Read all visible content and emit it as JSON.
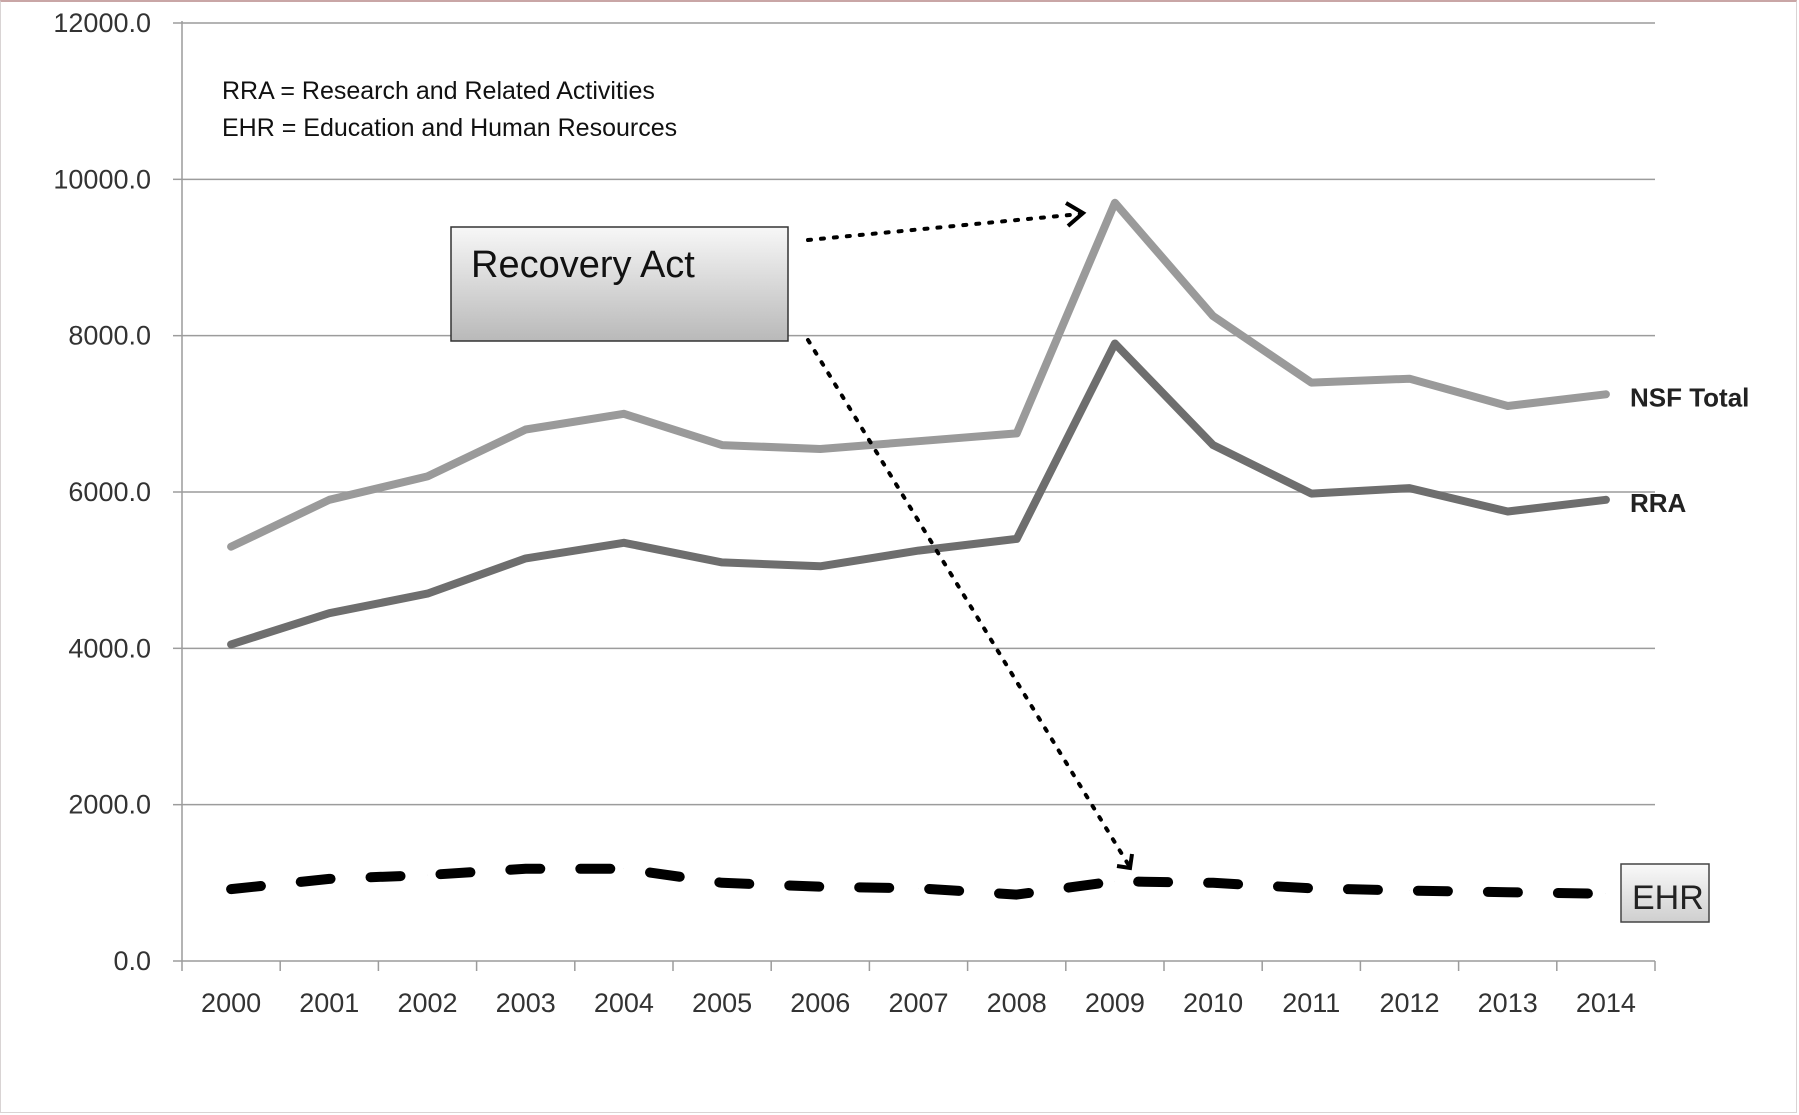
{
  "chart_data": {
    "type": "line",
    "title": "",
    "xlabel": "",
    "ylabel": "",
    "categories": [
      "2000",
      "2001",
      "2002",
      "2003",
      "2004",
      "2005",
      "2006",
      "2007",
      "2008",
      "2009",
      "2010",
      "2011",
      "2012",
      "2013",
      "2014"
    ],
    "ylim": [
      0,
      12000
    ],
    "yticks": [
      0,
      2000,
      4000,
      6000,
      8000,
      10000,
      12000
    ],
    "ytick_labels": [
      "0.0",
      "2000.0",
      "4000.0",
      "6000.0",
      "8000.0",
      "10000.0",
      "12000.0"
    ],
    "grid": true,
    "series": [
      {
        "name": "NSF Total",
        "color": "#9a9a9a",
        "style": "solid",
        "values": [
          5300,
          5900,
          6200,
          6800,
          7000,
          6600,
          6550,
          6650,
          6750,
          9700,
          8250,
          7400,
          7450,
          7100,
          7250
        ]
      },
      {
        "name": "RRA",
        "color": "#6e6e6e",
        "style": "solid",
        "values": [
          4050,
          4450,
          4700,
          5150,
          5350,
          5100,
          5050,
          5250,
          5400,
          7900,
          6600,
          5980,
          6050,
          5750,
          5900
        ]
      },
      {
        "name": "EHR",
        "color": "#000000",
        "style": "dashed",
        "values": [
          920,
          1050,
          1100,
          1180,
          1180,
          1000,
          950,
          930,
          850,
          1020,
          1000,
          930,
          900,
          880,
          860
        ]
      }
    ],
    "annotations": {
      "notes": [
        "RRA = Research and Related Activities",
        "EHR = Education and Human Resources"
      ],
      "callout": "Recovery Act",
      "callout_target_year": "2009"
    }
  }
}
